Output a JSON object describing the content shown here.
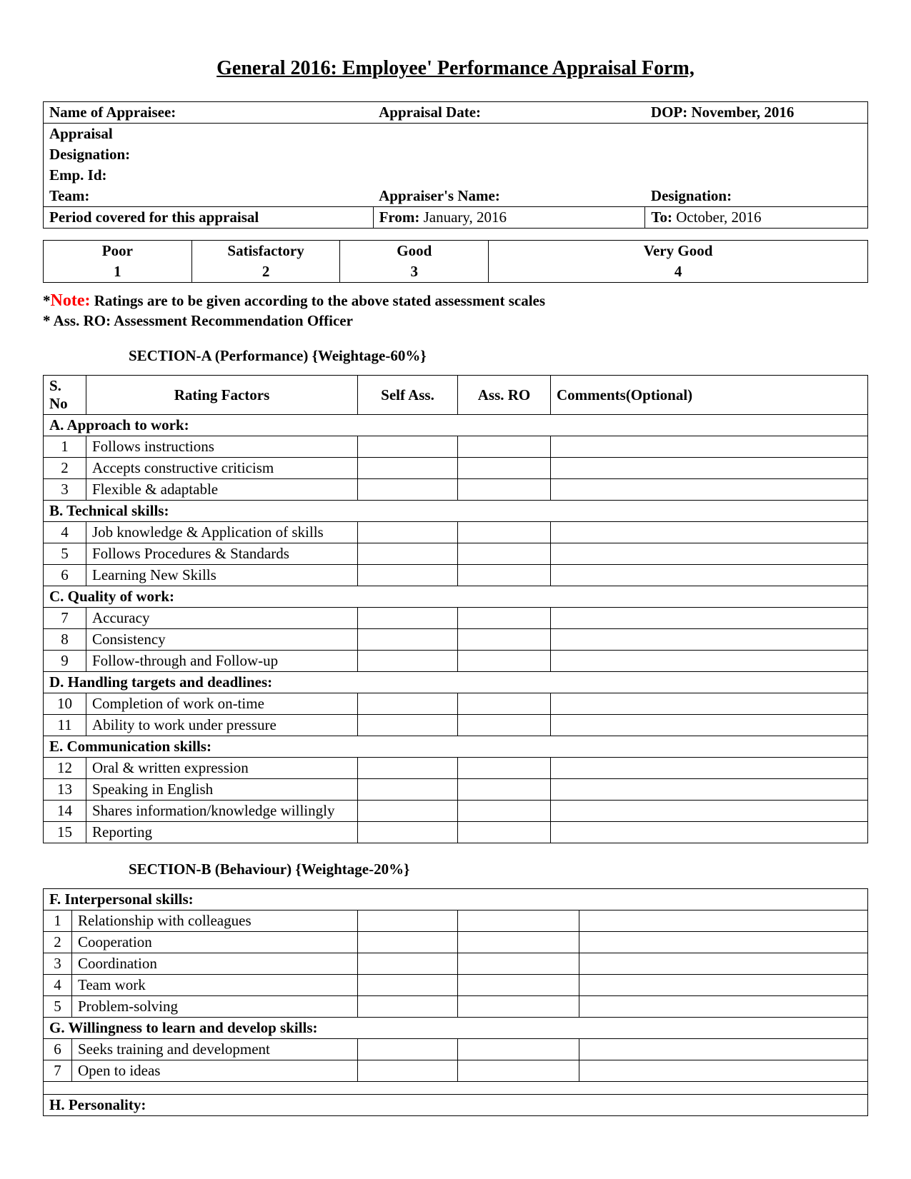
{
  "title": "General 2016: Employee' Performance Appraisal Form,",
  "info": {
    "name_label": "Name of Appraisee:",
    "appraisal_date_label": "Appraisal Date:",
    "dop_label": "DOP:",
    "dop_value": "November, 2016",
    "appraisal_label": "Appraisal",
    "designation_label": "Designation:",
    "emp_id_label": "Emp. Id:",
    "team_label": "Team:",
    "appraiser_name_label": "Appraiser's Name:",
    "designation2_label": "Designation:",
    "period_label": "Period covered for this appraisal",
    "from_label": "From:",
    "from_value": "January, 2016",
    "to_label": "To:",
    "to_value": "October, 2016"
  },
  "scale": [
    {
      "label": "Poor",
      "value": "1"
    },
    {
      "label": "Satisfactory",
      "value": "2"
    },
    {
      "label": "Good",
      "value": "3"
    },
    {
      "label": "Very Good",
      "value": "4"
    }
  ],
  "note": {
    "star": "*",
    "note_word": "Note:",
    "line1_rest": " Ratings are to be given according to the above stated assessment scales",
    "line2": "* Ass. RO: Assessment Recommendation Officer"
  },
  "sectionA": {
    "heading": "SECTION-A (Performance) {Weightage-60%}",
    "headers": {
      "sno": "S. No",
      "factors": "Rating Factors",
      "selfass": "Self Ass.",
      "assro": "Ass. RO",
      "comments": "Comments(Optional)"
    },
    "groups": [
      {
        "title": "A. Approach to work:",
        "rows": [
          {
            "n": "1",
            "f": "Follows instructions"
          },
          {
            "n": "2",
            "f": "Accepts constructive criticism"
          },
          {
            "n": "3",
            "f": "Flexible & adaptable"
          }
        ]
      },
      {
        "title": "B. Technical skills:",
        "rows": [
          {
            "n": "4",
            "f": "Job knowledge & Application of skills"
          },
          {
            "n": "5",
            "f": "Follows Procedures & Standards"
          },
          {
            "n": "6",
            "f": "Learning New Skills"
          }
        ]
      },
      {
        "title": "C. Quality of work:",
        "rows": [
          {
            "n": "7",
            "f": "Accuracy"
          },
          {
            "n": "8",
            "f": "Consistency"
          },
          {
            "n": "9",
            "f": "Follow-through and Follow-up"
          }
        ]
      },
      {
        "title": "D. Handling targets and deadlines:",
        "rows": [
          {
            "n": "10",
            "f": "Completion of work on-time"
          },
          {
            "n": "11",
            "f": "Ability to work under pressure"
          }
        ]
      },
      {
        "title": "E. Communication skills:",
        "rows": [
          {
            "n": "12",
            "f": "Oral & written expression"
          },
          {
            "n": "13",
            "f": "Speaking in English"
          },
          {
            "n": "14",
            "f": "Shares information/knowledge willingly"
          },
          {
            "n": "15",
            "f": "Reporting"
          }
        ]
      }
    ]
  },
  "sectionB": {
    "heading": "SECTION-B (Behaviour) {Weightage-20%}",
    "groups": [
      {
        "title": "F. Interpersonal skills:",
        "rows": [
          {
            "n": "1",
            "f": "Relationship with colleagues"
          },
          {
            "n": "2",
            "f": "Cooperation"
          },
          {
            "n": "3",
            "f": "Coordination"
          },
          {
            "n": "4",
            "f": "Team work"
          },
          {
            "n": "5",
            "f": "Problem-solving"
          }
        ]
      },
      {
        "title": "G. Willingness to learn and develop skills:",
        "padded": true,
        "rows": [
          {
            "n": "6",
            "f": "Seeks training and development"
          },
          {
            "n": "7",
            "f": "Open to ideas"
          }
        ]
      },
      {
        "title": "H. Personality:",
        "spacer_before": true,
        "rows": []
      }
    ]
  },
  "colors": {
    "text": "#000000",
    "note_red": "#ff0000",
    "border": "#000000",
    "background": "#ffffff"
  }
}
